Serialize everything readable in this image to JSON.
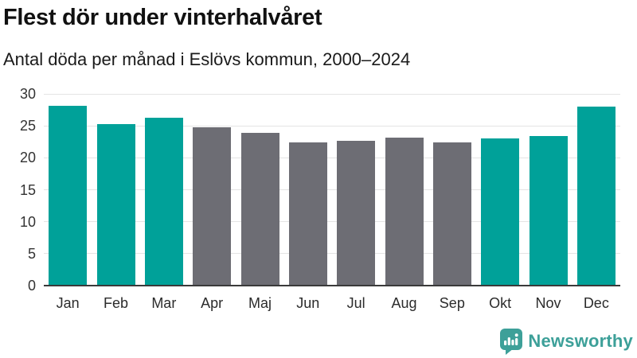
{
  "header": {
    "title": "Flest dör under vinterhalvåret",
    "subtitle": "Antal döda per månad i Eslövs kommun, 2000–2024"
  },
  "chart_data": {
    "type": "bar",
    "title": "Flest dör under vinterhalvåret",
    "subtitle": "Antal döda per månad i Eslövs kommun, 2000–2024",
    "categories": [
      "Jan",
      "Feb",
      "Mar",
      "Apr",
      "Maj",
      "Jun",
      "Jul",
      "Aug",
      "Sep",
      "Okt",
      "Nov",
      "Dec"
    ],
    "values": [
      28.1,
      25.3,
      26.3,
      24.8,
      23.9,
      22.4,
      22.6,
      23.2,
      22.4,
      23.0,
      23.4,
      28.0
    ],
    "bar_groups": [
      "winter",
      "winter",
      "winter",
      "summer",
      "summer",
      "summer",
      "summer",
      "summer",
      "summer",
      "winter",
      "winter",
      "winter"
    ],
    "group_colors": {
      "winter": "#00a199",
      "summer": "#6d6d74"
    },
    "xlabel": "",
    "ylabel": "",
    "ylim": [
      0,
      30
    ],
    "yticks": [
      0,
      5,
      10,
      15,
      20,
      25,
      30
    ],
    "grid": "horizontal gridlines on",
    "legend": "none"
  },
  "footer": {
    "logo_text": "Newsworthy",
    "logo_icon": "newsworthy-bar-chart-speech-bubble"
  },
  "colors": {
    "accent_teal": "#00a199",
    "neutral_gray": "#6d6d74",
    "gridline": "#e4e4e4",
    "axis_line": "#3a3a3a",
    "logo_teal": "#3da099",
    "title_text": "#111111"
  }
}
